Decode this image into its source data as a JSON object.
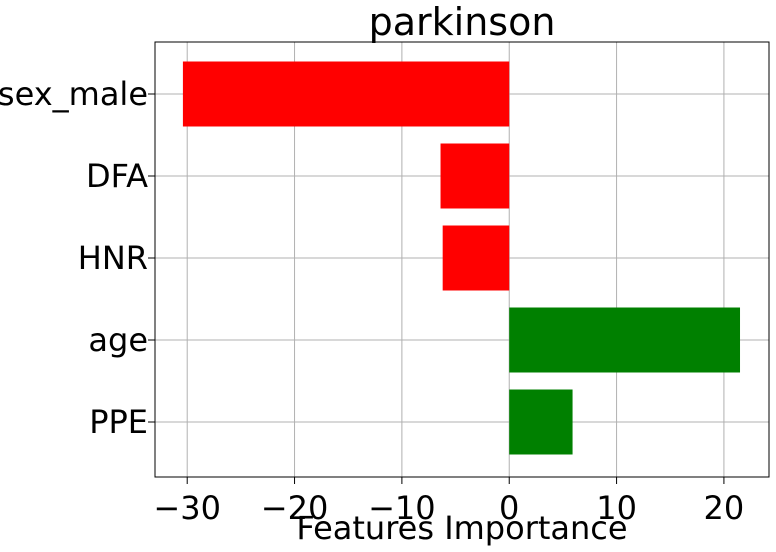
{
  "chart_data": {
    "type": "bar",
    "orientation": "horizontal",
    "title": "parkinson",
    "xlabel": "Features Importance",
    "ylabel": "",
    "categories": [
      "sex_male",
      "DFA",
      "HNR",
      "age",
      "PPE"
    ],
    "values": [
      -30.4,
      -6.4,
      -6.2,
      21.5,
      5.9
    ],
    "colors": [
      "#ff0000",
      "#ff0000",
      "#ff0000",
      "#008000",
      "#008000"
    ],
    "xlim": [
      -33,
      24.2
    ],
    "xticks": [
      -30,
      -20,
      -10,
      0,
      10,
      20
    ],
    "xtick_labels": [
      "−30",
      "−20",
      "−10",
      "0",
      "10",
      "20"
    ],
    "grid": true
  }
}
